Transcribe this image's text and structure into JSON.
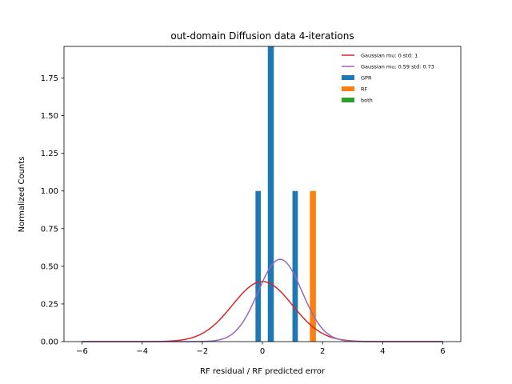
{
  "chart_data": {
    "type": "bar",
    "title": "out-domain Diffusion data 4-iterations",
    "xlabel": "RF residual / RF predicted error",
    "ylabel": "Normalized Counts",
    "xlim": [
      -6.6,
      6.6
    ],
    "ylim": [
      0,
      1.96
    ],
    "xticks": [
      -6,
      -4,
      -2,
      0,
      2,
      4,
      6
    ],
    "xtick_labels": [
      "−6",
      "−4",
      "−2",
      "0",
      "2",
      "4",
      "6"
    ],
    "yticks": [
      0.0,
      0.25,
      0.5,
      0.75,
      1.0,
      1.25,
      1.5,
      1.75
    ],
    "ytick_labels": [
      "0.00",
      "0.25",
      "0.50",
      "0.75",
      "1.00",
      "1.25",
      "1.50",
      "1.75"
    ],
    "grid": false,
    "legend_position": "top-right",
    "series": [
      {
        "name": "Gaussian mu: 0 std: 1",
        "kind": "line",
        "mu": 0,
        "std": 1,
        "color": "#d62728",
        "x_range": [
          -6,
          6
        ]
      },
      {
        "name": "Gaussian mu: 0.59 std: 0.73",
        "kind": "line",
        "mu": 0.59,
        "std": 0.73,
        "color": "#9467bd",
        "x_range": [
          -6,
          6
        ]
      },
      {
        "name": "GPR",
        "kind": "bar",
        "color": "#1f77b4",
        "bars": [
          {
            "x0": -0.23,
            "x1": -0.05,
            "value": 1.0
          },
          {
            "x0": 0.18,
            "x1": 0.38,
            "value": 2.0
          },
          {
            "x0": 1.0,
            "x1": 1.18,
            "value": 1.0
          }
        ]
      },
      {
        "name": "RF",
        "kind": "bar",
        "color": "#ff7f0e",
        "bars": [
          {
            "x0": 1.58,
            "x1": 1.78,
            "value": 1.0
          }
        ]
      },
      {
        "name": "both",
        "kind": "bar",
        "color": "#2ca02c",
        "bars": []
      }
    ]
  }
}
